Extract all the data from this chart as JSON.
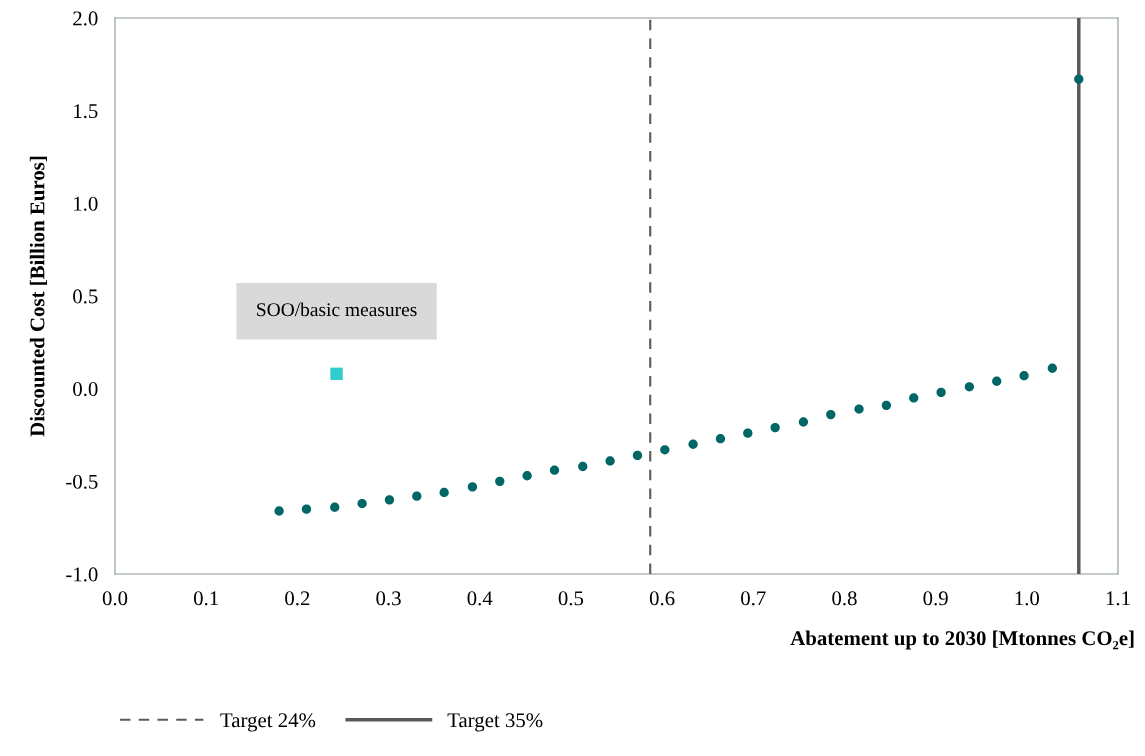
{
  "chart_data": {
    "type": "scatter",
    "xlabel": "Abatement up to 2030 [Mtonnes CO₂e]",
    "ylabel": "Discounted Cost [Billion Euros]",
    "xlim": [
      0,
      1.1
    ],
    "xticks": [
      {
        "value": 0,
        "label": "0.0"
      },
      0.1,
      0.2,
      0.3,
      0.4,
      0.5,
      0.6,
      0.7,
      0.8,
      0.9,
      {
        "value": 1,
        "label": "1.0"
      },
      1.1
    ],
    "ylim": [
      -1,
      2
    ],
    "yticks": [
      {
        "value": -1,
        "label": "-1.0"
      },
      -0.5,
      {
        "value": 0,
        "label": "0.0"
      },
      0.5,
      {
        "value": 1,
        "label": "1.0"
      },
      1.5,
      {
        "value": 2,
        "label": "2.0"
      }
    ],
    "series": [
      {
        "color": "#006666",
        "marker": "circle",
        "x": [
          0.18,
          0.21,
          0.241,
          0.271,
          0.301,
          0.331,
          0.361,
          0.392,
          0.422,
          0.452,
          0.482,
          0.513,
          0.543,
          0.573,
          0.603,
          0.634,
          0.664,
          0.694,
          0.724,
          0.755,
          0.785,
          0.816,
          0.846,
          0.876,
          0.906,
          0.937,
          0.967,
          0.997,
          1.028,
          1.057
        ],
        "values": [
          -0.66,
          -0.65,
          -0.64,
          -0.62,
          -0.6,
          -0.58,
          -0.56,
          -0.53,
          -0.5,
          -0.47,
          -0.44,
          -0.42,
          -0.39,
          -0.36,
          -0.33,
          -0.3,
          -0.27,
          -0.24,
          -0.21,
          -0.18,
          -0.14,
          -0.11,
          -0.09,
          -0.05,
          -0.02,
          0.01,
          0.04,
          0.07,
          0.11,
          1.67
        ]
      },
      {
        "color": "#33cccc",
        "marker": "square",
        "x": [
          0.243
        ],
        "values": [
          0.08
        ]
      }
    ],
    "ref_lines": [
      {
        "axis": "x",
        "value": 0.587,
        "label": "Target 24%",
        "color": "#595959",
        "line_style": "dashed"
      },
      {
        "axis": "x",
        "value": 1.057,
        "label": "Target 35%",
        "color": "#595959",
        "line_style": "solid"
      }
    ],
    "annotations": [
      {
        "text": "SOO/basic measures",
        "x": 0.243,
        "y": 0.08
      }
    ],
    "grid": false,
    "legend": "bottom"
  }
}
